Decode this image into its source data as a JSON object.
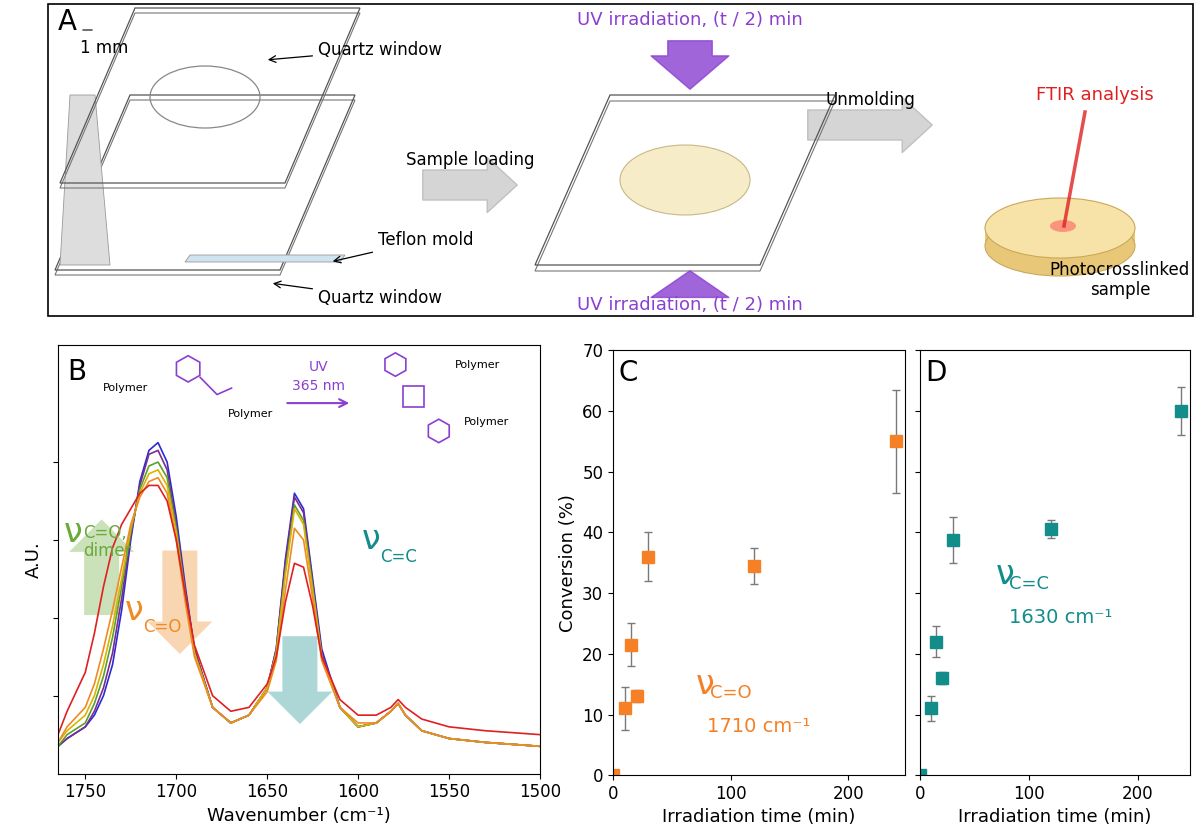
{
  "diagram": {
    "panel_label": "A",
    "dimension": "1 mm",
    "quartz_window": [
      "Quartz window",
      "Quartz window"
    ],
    "teflon_mold": "Teflon mold",
    "sample_loading": "Sample loading",
    "uv_irradiation": [
      "UV irradiation, (t / 2) min",
      "UV irradiation, (t / 2) min"
    ],
    "unmolding": "Unmolding",
    "ftir": "FTIR analysis",
    "product": "Photocrosslinked\nsample"
  },
  "chart_data": [
    {
      "type": "line",
      "panel_label": "B",
      "x_label": "Wavenumber (cm⁻¹)",
      "y_label": "A.U.",
      "xlim": [
        1765,
        1500
      ],
      "xticks": [
        1750,
        1700,
        1650,
        1600,
        1550,
        1500
      ],
      "ylim": [
        0,
        1.1
      ],
      "yticks": [
        0.2,
        0.4,
        0.6,
        0.8
      ],
      "tick_labels": "x",
      "x": [
        1765,
        1760,
        1750,
        1745,
        1740,
        1735,
        1730,
        1725,
        1720,
        1715,
        1710,
        1705,
        1700,
        1695,
        1690,
        1680,
        1670,
        1660,
        1650,
        1645,
        1640,
        1635,
        1630,
        1625,
        1620,
        1610,
        1600,
        1590,
        1582,
        1578,
        1574,
        1565,
        1550,
        1530,
        1500
      ],
      "series": [
        {
          "color": "#2b2bd6",
          "values": [
            0.07,
            0.09,
            0.12,
            0.15,
            0.2,
            0.28,
            0.42,
            0.6,
            0.75,
            0.83,
            0.85,
            0.8,
            0.66,
            0.48,
            0.32,
            0.17,
            0.13,
            0.15,
            0.22,
            0.32,
            0.55,
            0.72,
            0.68,
            0.5,
            0.32,
            0.17,
            0.12,
            0.13,
            0.16,
            0.18,
            0.15,
            0.11,
            0.09,
            0.08,
            0.07
          ]
        },
        {
          "color": "#7b2d8e",
          "values": [
            0.07,
            0.09,
            0.12,
            0.16,
            0.22,
            0.31,
            0.45,
            0.61,
            0.74,
            0.82,
            0.83,
            0.78,
            0.64,
            0.47,
            0.32,
            0.17,
            0.13,
            0.15,
            0.22,
            0.32,
            0.54,
            0.71,
            0.67,
            0.49,
            0.31,
            0.17,
            0.12,
            0.13,
            0.16,
            0.18,
            0.15,
            0.11,
            0.09,
            0.08,
            0.07
          ]
        },
        {
          "color": "#5aa02c",
          "values": [
            0.07,
            0.1,
            0.13,
            0.18,
            0.25,
            0.35,
            0.48,
            0.62,
            0.73,
            0.79,
            0.8,
            0.76,
            0.63,
            0.46,
            0.31,
            0.17,
            0.13,
            0.15,
            0.22,
            0.31,
            0.52,
            0.69,
            0.65,
            0.48,
            0.3,
            0.17,
            0.12,
            0.13,
            0.16,
            0.18,
            0.15,
            0.11,
            0.09,
            0.08,
            0.07
          ]
        },
        {
          "color": "#d9b400",
          "values": [
            0.08,
            0.11,
            0.15,
            0.2,
            0.28,
            0.38,
            0.5,
            0.63,
            0.72,
            0.77,
            0.78,
            0.74,
            0.62,
            0.45,
            0.31,
            0.17,
            0.13,
            0.15,
            0.22,
            0.31,
            0.51,
            0.68,
            0.64,
            0.47,
            0.3,
            0.17,
            0.12,
            0.13,
            0.16,
            0.18,
            0.15,
            0.11,
            0.09,
            0.08,
            0.07
          ]
        },
        {
          "color": "#f08a24",
          "values": [
            0.08,
            0.12,
            0.17,
            0.23,
            0.32,
            0.42,
            0.53,
            0.64,
            0.71,
            0.75,
            0.76,
            0.72,
            0.6,
            0.44,
            0.3,
            0.17,
            0.13,
            0.15,
            0.21,
            0.29,
            0.47,
            0.63,
            0.6,
            0.45,
            0.29,
            0.17,
            0.13,
            0.13,
            0.16,
            0.18,
            0.15,
            0.11,
            0.09,
            0.08,
            0.07
          ]
        },
        {
          "color": "#e02020",
          "values": [
            0.1,
            0.16,
            0.26,
            0.36,
            0.48,
            0.58,
            0.64,
            0.68,
            0.72,
            0.74,
            0.74,
            0.7,
            0.6,
            0.46,
            0.33,
            0.2,
            0.16,
            0.17,
            0.23,
            0.3,
            0.44,
            0.54,
            0.53,
            0.43,
            0.3,
            0.19,
            0.15,
            0.15,
            0.17,
            0.19,
            0.17,
            0.14,
            0.12,
            0.11,
            0.1
          ]
        }
      ],
      "annotations": [
        {
          "symbol": "ν",
          "subscript": "C=O,\ndimer",
          "color": "#6aaa3a"
        },
        {
          "symbol": "ν",
          "subscript": "C=O",
          "color": "#f08a24"
        },
        {
          "symbol": "ν",
          "subscript": "C=C",
          "color": "#138d8a"
        }
      ],
      "scheme": {
        "polymer_labels": [
          "Polymer",
          "Polymer",
          "Polymer",
          "Polymer"
        ],
        "light": "UV",
        "wavelength": "365 nm",
        "color": "#8a3fd1"
      }
    },
    {
      "type": "scatter",
      "panel_label": "C",
      "x_label": "Irradiation time (min)",
      "y_label": "Conversion (%)",
      "xlim": [
        0,
        248
      ],
      "xticks": [
        0,
        100,
        200
      ],
      "ylim": [
        0,
        70
      ],
      "yticks": [
        0,
        10,
        20,
        30,
        40,
        50,
        60,
        70
      ],
      "series": [
        {
          "color": "#f58025",
          "marker": "s",
          "x": [
            0,
            10,
            15,
            20,
            30,
            120,
            240
          ],
          "values": [
            0,
            11,
            21.5,
            13,
            36,
            34.5,
            55
          ],
          "errors": [
            0,
            3.5,
            3.5,
            1,
            4,
            3,
            8.5
          ]
        }
      ],
      "label": {
        "symbol": "ν",
        "subscript": "C=O",
        "wavenumber": "1710 cm⁻¹"
      }
    },
    {
      "type": "scatter",
      "panel_label": "D",
      "x_label": "Irradiation time (min)",
      "xlim": [
        0,
        248
      ],
      "xticks": [
        0,
        100,
        200
      ],
      "ylim": [
        0,
        70
      ],
      "yticks": [
        0,
        10,
        20,
        30,
        40,
        50,
        60,
        70
      ],
      "tick_labels": "x",
      "series": [
        {
          "color": "#138d8a",
          "marker": "s",
          "x": [
            0,
            10,
            15,
            20,
            30,
            120,
            240
          ],
          "values": [
            0,
            11,
            22,
            16,
            38.7,
            40.5,
            60
          ],
          "errors": [
            0,
            2,
            2.5,
            1,
            3.8,
            1.5,
            4
          ]
        }
      ],
      "label": {
        "symbol": "ν",
        "subscript": "C=C",
        "wavenumber": "1630 cm⁻¹"
      }
    }
  ]
}
